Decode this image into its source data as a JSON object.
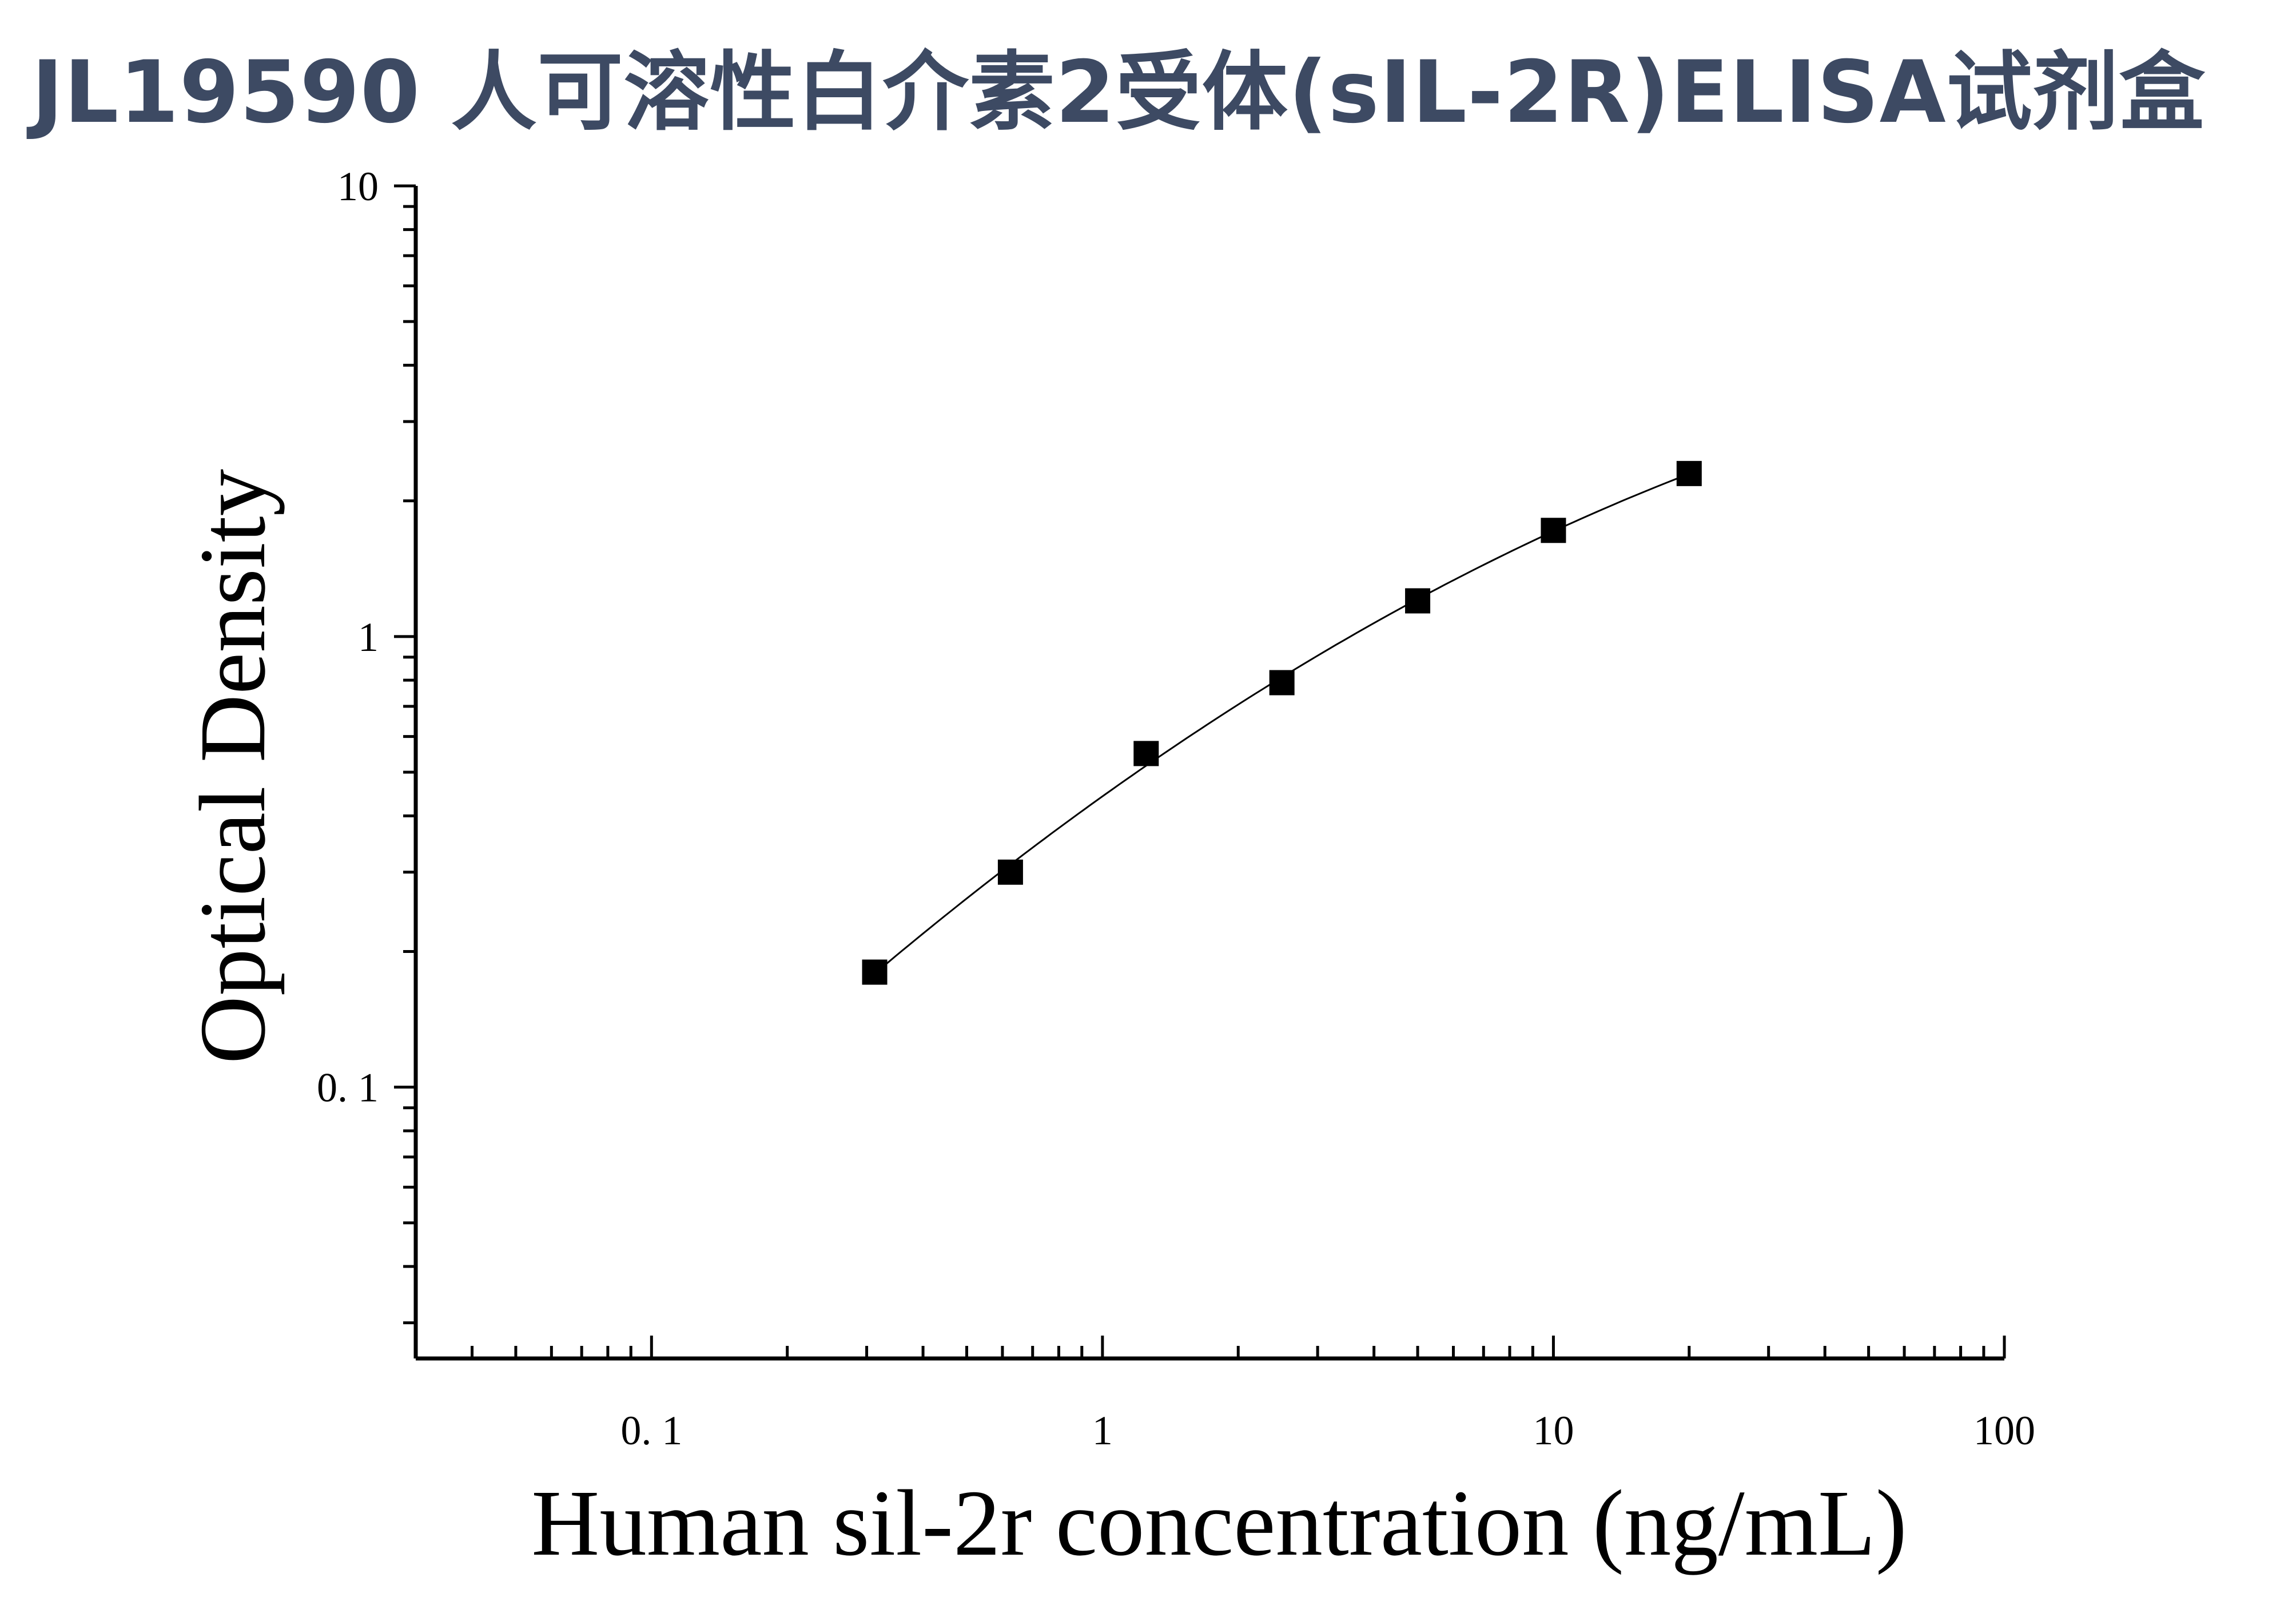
{
  "title": "JL19590 人可溶性白介素2受体(sIL-2R)ELISA试剂盒",
  "chart_data": {
    "type": "scatter",
    "xlabel": "Human sil-2r concentration (ng/mL)",
    "ylabel": "Optical Density",
    "xscale": "log",
    "yscale": "log",
    "xlim": [
      0.03,
      100
    ],
    "ylim": [
      0.025,
      10
    ],
    "x_ticks": [
      0.1,
      1,
      10,
      100
    ],
    "x_tick_labels": [
      "0. 1",
      "1",
      "10",
      "100"
    ],
    "y_ticks": [
      0.1,
      1,
      10
    ],
    "y_tick_labels": [
      "0. 1",
      "1",
      "10"
    ],
    "grid": false,
    "series": [
      {
        "x": [
          0.3125,
          0.625,
          1.25,
          2.5,
          5,
          10,
          20
        ],
        "y": [
          0.18,
          0.3,
          0.55,
          0.79,
          1.2,
          1.72,
          2.3
        ],
        "marker": "square",
        "color": "#000000",
        "fit_line": true
      }
    ]
  }
}
